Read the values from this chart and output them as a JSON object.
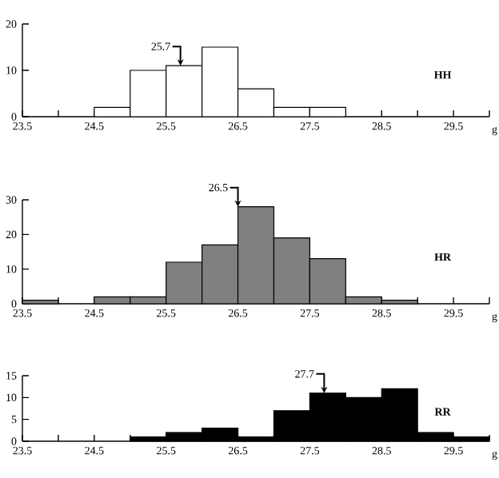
{
  "chart_data": [
    {
      "type": "histogram",
      "xlabel": "g",
      "color": "#ffffff",
      "bins": [
        23.5,
        24.0,
        24.5,
        25.0,
        25.5,
        26.0,
        26.5,
        27.0,
        27.5,
        28.0,
        28.5,
        29.0,
        29.5,
        30.0
      ],
      "values": [
        0,
        0,
        2,
        10,
        11,
        15,
        6,
        2,
        2,
        0,
        0,
        0,
        0
      ],
      "xlim": [
        23.5,
        30.0
      ],
      "xticks": [
        23.5,
        {
          "value": 24.0,
          "label": null
        },
        24.5,
        {
          "value": 25.0,
          "label": null
        },
        25.5,
        {
          "value": 26.0,
          "label": null
        },
        26.5,
        {
          "value": 27.0,
          "label": null
        },
        27.5,
        {
          "value": 28.0,
          "label": null
        },
        28.5,
        {
          "value": 29.0,
          "label": null
        },
        29.5,
        {
          "value": 30.0,
          "label": null
        }
      ],
      "ylim": [
        0,
        20
      ],
      "yticks": [
        0,
        10,
        20
      ],
      "annotations": [
        {
          "text": "25.7",
          "x": 25.7,
          "y": 11
        },
        "HH"
      ]
    },
    {
      "type": "histogram",
      "xlabel": "g",
      "color": "#808080",
      "bins": [
        23.5,
        24.0,
        24.5,
        25.0,
        25.5,
        26.0,
        26.5,
        27.0,
        27.5,
        28.0,
        28.5,
        29.0,
        29.5,
        30.0
      ],
      "values": [
        1,
        0,
        2,
        2,
        12,
        17,
        28,
        19,
        13,
        2,
        1,
        0,
        0
      ],
      "xlim": [
        23.5,
        30.0
      ],
      "xticks": [
        23.5,
        {
          "value": 24.0,
          "label": null
        },
        24.5,
        {
          "value": 25.0,
          "label": null
        },
        25.5,
        {
          "value": 26.0,
          "label": null
        },
        26.5,
        {
          "value": 27.0,
          "label": null
        },
        27.5,
        {
          "value": 28.0,
          "label": null
        },
        28.5,
        {
          "value": 29.0,
          "label": null
        },
        29.5,
        {
          "value": 30.0,
          "label": null
        }
      ],
      "ylim": [
        0,
        30
      ],
      "yticks": [
        0,
        10,
        20,
        30
      ],
      "annotations": [
        {
          "text": "26.5",
          "x": 26.5,
          "y": 28
        },
        "HR"
      ]
    },
    {
      "type": "histogram",
      "xlabel": "g",
      "color": "#000000",
      "bins": [
        23.5,
        24.0,
        24.5,
        25.0,
        25.5,
        26.0,
        26.5,
        27.0,
        27.5,
        28.0,
        28.5,
        29.0,
        29.5,
        30.0
      ],
      "values": [
        0,
        0,
        0,
        1,
        2,
        3,
        1,
        7,
        11,
        10,
        12,
        2,
        1
      ],
      "xlim": [
        23.5,
        30.0
      ],
      "xticks": [
        23.5,
        {
          "value": 24.0,
          "label": null
        },
        24.5,
        {
          "value": 25.0,
          "label": null
        },
        25.5,
        {
          "value": 26.0,
          "label": null
        },
        26.5,
        {
          "value": 27.0,
          "label": null
        },
        27.5,
        {
          "value": 28.0,
          "label": null
        },
        28.5,
        {
          "value": 29.0,
          "label": null
        },
        29.5,
        {
          "value": 30.0,
          "label": null
        }
      ],
      "ylim": [
        0,
        15
      ],
      "yticks": [
        0,
        5,
        10,
        15
      ],
      "annotations": [
        {
          "text": "27.7",
          "x": 27.7,
          "y": 11
        },
        "RR"
      ]
    }
  ]
}
